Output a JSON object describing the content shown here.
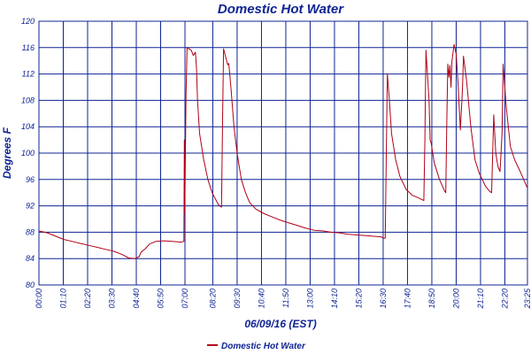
{
  "colors": {
    "text": "#0f2493",
    "grid": "#0f2493",
    "series": "#b00018",
    "background": "#ffffff"
  },
  "chart_data": {
    "type": "line",
    "title": "Domestic Hot Water",
    "xlabel": "06/09/16 (EST)",
    "ylabel": "Degrees F",
    "ylim": [
      80,
      120
    ],
    "yticks": [
      80,
      84,
      88,
      92,
      96,
      100,
      104,
      108,
      112,
      116,
      120
    ],
    "xlim_hours": [
      0,
      23.4167
    ],
    "xticks": [
      {
        "h": 0.0,
        "label": "00:00"
      },
      {
        "h": 1.1667,
        "label": "01:10"
      },
      {
        "h": 2.3333,
        "label": "02:20"
      },
      {
        "h": 3.5,
        "label": "03:30"
      },
      {
        "h": 4.6667,
        "label": "04:40"
      },
      {
        "h": 5.8333,
        "label": "05:50"
      },
      {
        "h": 7.0,
        "label": "07:00"
      },
      {
        "h": 8.3333,
        "label": "08:20"
      },
      {
        "h": 9.5,
        "label": "09:30"
      },
      {
        "h": 10.6667,
        "label": "10:40"
      },
      {
        "h": 11.8333,
        "label": "11:50"
      },
      {
        "h": 13.0,
        "label": "13:00"
      },
      {
        "h": 14.1667,
        "label": "14:10"
      },
      {
        "h": 15.3333,
        "label": "15:20"
      },
      {
        "h": 16.5,
        "label": "16:30"
      },
      {
        "h": 17.6667,
        "label": "17:40"
      },
      {
        "h": 18.8333,
        "label": "18:50"
      },
      {
        "h": 20.0,
        "label": "20:00"
      },
      {
        "h": 21.1667,
        "label": "21:10"
      },
      {
        "h": 22.3333,
        "label": "22:20"
      },
      {
        "h": 23.4167,
        "label": "23:25"
      }
    ],
    "legend": {
      "label": "Domestic Hot Water",
      "placement": "bottom-left"
    },
    "grid": true,
    "series": [
      {
        "name": "Domestic Hot Water",
        "points": [
          [
            0.0,
            88.2
          ],
          [
            0.4,
            87.9
          ],
          [
            0.8,
            87.4
          ],
          [
            1.2,
            86.9
          ],
          [
            1.6,
            86.6
          ],
          [
            2.0,
            86.3
          ],
          [
            2.4,
            86.0
          ],
          [
            2.8,
            85.7
          ],
          [
            3.2,
            85.4
          ],
          [
            3.6,
            85.1
          ],
          [
            4.0,
            84.6
          ],
          [
            4.3,
            84.1
          ],
          [
            4.6,
            84.0
          ],
          [
            4.8,
            84.3
          ],
          [
            4.9,
            85.0
          ],
          [
            5.1,
            85.5
          ],
          [
            5.3,
            86.2
          ],
          [
            5.6,
            86.6
          ],
          [
            6.0,
            86.7
          ],
          [
            6.4,
            86.6
          ],
          [
            6.8,
            86.5
          ],
          [
            6.95,
            86.6
          ],
          [
            6.97,
            102.0
          ],
          [
            6.99,
            91.0
          ],
          [
            7.05,
            109.0
          ],
          [
            7.1,
            116.0
          ],
          [
            7.3,
            115.6
          ],
          [
            7.4,
            114.8
          ],
          [
            7.5,
            115.3
          ],
          [
            7.55,
            113.0
          ],
          [
            7.6,
            108.0
          ],
          [
            7.7,
            103.0
          ],
          [
            7.9,
            99.0
          ],
          [
            8.1,
            96.0
          ],
          [
            8.3,
            94.0
          ],
          [
            8.6,
            92.2
          ],
          [
            8.75,
            91.8
          ],
          [
            8.8,
            104.0
          ],
          [
            8.85,
            115.8
          ],
          [
            8.95,
            114.6
          ],
          [
            9.05,
            113.4
          ],
          [
            9.1,
            113.6
          ],
          [
            9.2,
            110.0
          ],
          [
            9.35,
            104.0
          ],
          [
            9.5,
            100.0
          ],
          [
            9.7,
            96.0
          ],
          [
            9.9,
            94.0
          ],
          [
            10.1,
            92.5
          ],
          [
            10.4,
            91.5
          ],
          [
            10.8,
            90.8
          ],
          [
            11.2,
            90.3
          ],
          [
            11.6,
            89.8
          ],
          [
            12.0,
            89.4
          ],
          [
            12.4,
            89.0
          ],
          [
            12.8,
            88.6
          ],
          [
            13.2,
            88.3
          ],
          [
            13.6,
            88.2
          ],
          [
            14.0,
            88.0
          ],
          [
            14.4,
            87.9
          ],
          [
            14.8,
            87.7
          ],
          [
            15.2,
            87.6
          ],
          [
            15.6,
            87.5
          ],
          [
            16.0,
            87.4
          ],
          [
            16.4,
            87.3
          ],
          [
            16.5,
            87.1
          ],
          [
            16.6,
            87.1
          ],
          [
            16.65,
            100.0
          ],
          [
            16.7,
            112.0
          ],
          [
            16.8,
            108.0
          ],
          [
            16.9,
            103.0
          ],
          [
            17.1,
            99.0
          ],
          [
            17.3,
            96.5
          ],
          [
            17.6,
            94.5
          ],
          [
            17.9,
            93.6
          ],
          [
            18.2,
            93.2
          ],
          [
            18.45,
            92.8
          ],
          [
            18.5,
            102.0
          ],
          [
            18.55,
            115.6
          ],
          [
            18.7,
            108.0
          ],
          [
            18.75,
            102.0
          ],
          [
            18.8,
            101.5
          ],
          [
            18.95,
            98.5
          ],
          [
            19.2,
            96.0
          ],
          [
            19.45,
            94.2
          ],
          [
            19.5,
            94.0
          ],
          [
            19.55,
            105.0
          ],
          [
            19.6,
            113.5
          ],
          [
            19.65,
            111.5
          ],
          [
            19.7,
            113.3
          ],
          [
            19.75,
            110.0
          ],
          [
            19.8,
            114.0
          ],
          [
            19.9,
            116.5
          ],
          [
            20.0,
            115.0
          ],
          [
            20.1,
            110.0
          ],
          [
            20.2,
            103.5
          ],
          [
            20.3,
            109.5
          ],
          [
            20.35,
            114.7
          ],
          [
            20.5,
            111.0
          ],
          [
            20.7,
            104.0
          ],
          [
            20.9,
            99.0
          ],
          [
            21.1,
            97.0
          ],
          [
            21.4,
            95.0
          ],
          [
            21.6,
            94.2
          ],
          [
            21.7,
            94.0
          ],
          [
            21.75,
            100.0
          ],
          [
            21.8,
            105.8
          ],
          [
            21.9,
            100.0
          ],
          [
            22.0,
            98.0
          ],
          [
            22.1,
            97.2
          ],
          [
            22.2,
            103.0
          ],
          [
            22.25,
            113.5
          ],
          [
            22.4,
            107.0
          ],
          [
            22.6,
            101.0
          ],
          [
            22.8,
            99.0
          ],
          [
            23.1,
            97.0
          ],
          [
            23.4,
            94.8
          ]
        ]
      }
    ]
  }
}
